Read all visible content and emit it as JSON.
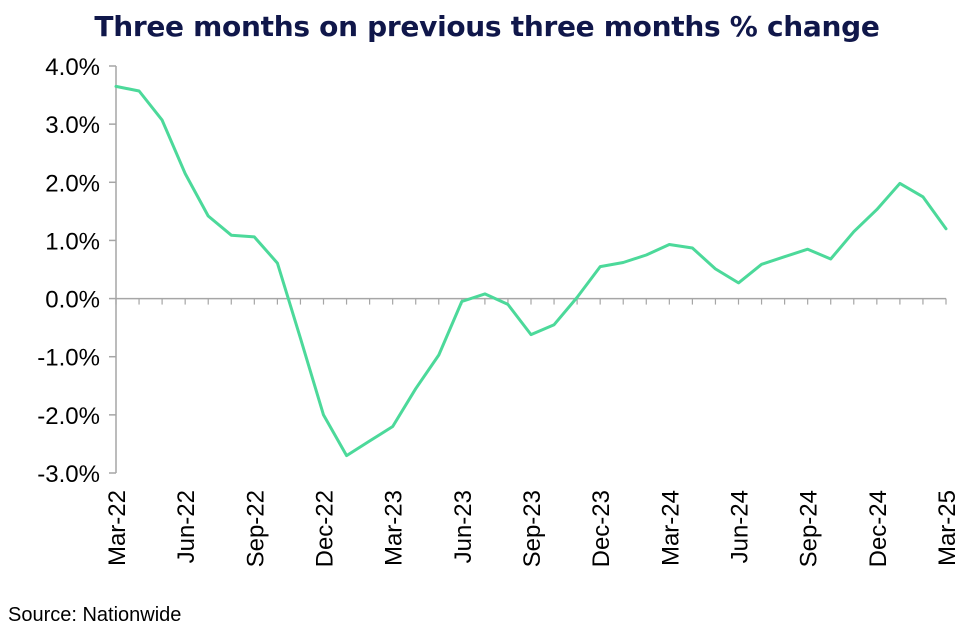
{
  "chart_data": {
    "type": "line",
    "title": "Three months on previous three months % change",
    "source": "Source: Nationwide",
    "xlabel": "",
    "ylabel": "",
    "ylim": [
      -3.0,
      4.0
    ],
    "yticks": [
      "4.0%",
      "3.0%",
      "2.0%",
      "1.0%",
      "0.0%",
      "-1.0%",
      "-2.0%",
      "-3.0%"
    ],
    "ytick_values": [
      4,
      3,
      2,
      1,
      0,
      -1,
      -2,
      -3
    ],
    "xticks": [
      "Mar-22",
      "Jun-22",
      "Sep-22",
      "Dec-22",
      "Mar-23",
      "Jun-23",
      "Sep-23",
      "Dec-23",
      "Mar-24",
      "Jun-24",
      "Sep-24",
      "Dec-24",
      "Mar-25"
    ],
    "x": [
      "Mar-22",
      "Apr-22",
      "May-22",
      "Jun-22",
      "Jul-22",
      "Aug-22",
      "Sep-22",
      "Oct-22",
      "Nov-22",
      "Dec-22",
      "Jan-23",
      "Feb-23",
      "Mar-23",
      "Apr-23",
      "May-23",
      "Jun-23",
      "Jul-23",
      "Aug-23",
      "Sep-23",
      "Oct-23",
      "Nov-23",
      "Dec-23",
      "Jan-24",
      "Feb-24",
      "Mar-24",
      "Apr-24",
      "May-24",
      "Jun-24",
      "Jul-24",
      "Aug-24",
      "Sep-24",
      "Oct-24",
      "Nov-24",
      "Dec-24",
      "Jan-25",
      "Feb-25",
      "Mar-25"
    ],
    "series": [
      {
        "values": [
          3.65,
          3.57,
          3.07,
          2.15,
          1.42,
          1.09,
          1.06,
          0.61,
          -0.68,
          -2.0,
          -2.7,
          -2.45,
          -2.2,
          -1.55,
          -0.97,
          -0.05,
          0.08,
          -0.1,
          -0.62,
          -0.45,
          0.02,
          0.55,
          0.62,
          0.75,
          0.93,
          0.87,
          0.51,
          0.27,
          0.59,
          0.72,
          0.85,
          0.68,
          1.15,
          1.53,
          1.98,
          1.75,
          1.2
        ]
      }
    ],
    "line_color": "#4cd99a",
    "grid": false
  }
}
